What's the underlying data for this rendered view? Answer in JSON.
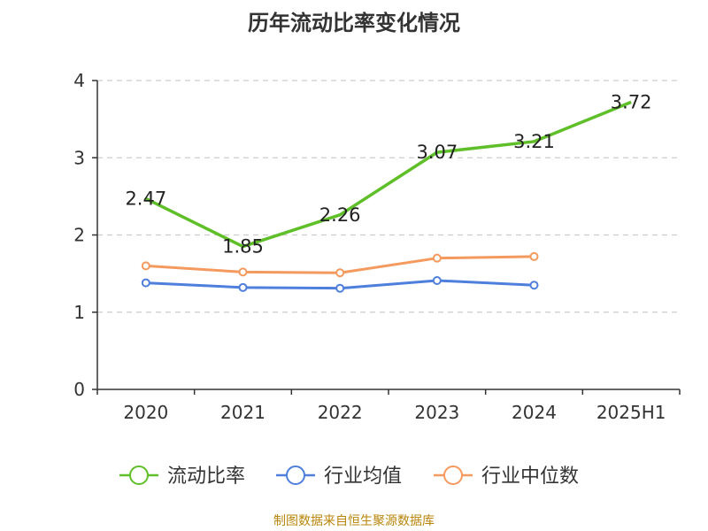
{
  "chart_data": {
    "type": "line",
    "title": "历年流动比率变化情况",
    "categories": [
      "2020",
      "2021",
      "2022",
      "2023",
      "2024",
      "2025H1"
    ],
    "ylim": [
      0,
      4
    ],
    "yticks": [
      "0",
      "1",
      "2",
      "3",
      "4"
    ],
    "grid": true,
    "legend_position": "bottom",
    "series": [
      {
        "name": "流动比率",
        "color": "#5fbf29",
        "values": [
          2.47,
          1.85,
          2.26,
          3.07,
          3.21,
          3.72
        ],
        "labels": [
          "2.47",
          "1.85",
          "2.26",
          "3.07",
          "3.21",
          "3.72"
        ]
      },
      {
        "name": "行业均值",
        "color": "#4f7fdc",
        "values": [
          1.38,
          1.32,
          1.31,
          1.41,
          1.35,
          null
        ]
      },
      {
        "name": "行业中位数",
        "color": "#f59a5e",
        "values": [
          1.6,
          1.52,
          1.51,
          1.7,
          1.72,
          null
        ]
      }
    ]
  },
  "source_note": "制图数据来自恒生聚源数据库"
}
